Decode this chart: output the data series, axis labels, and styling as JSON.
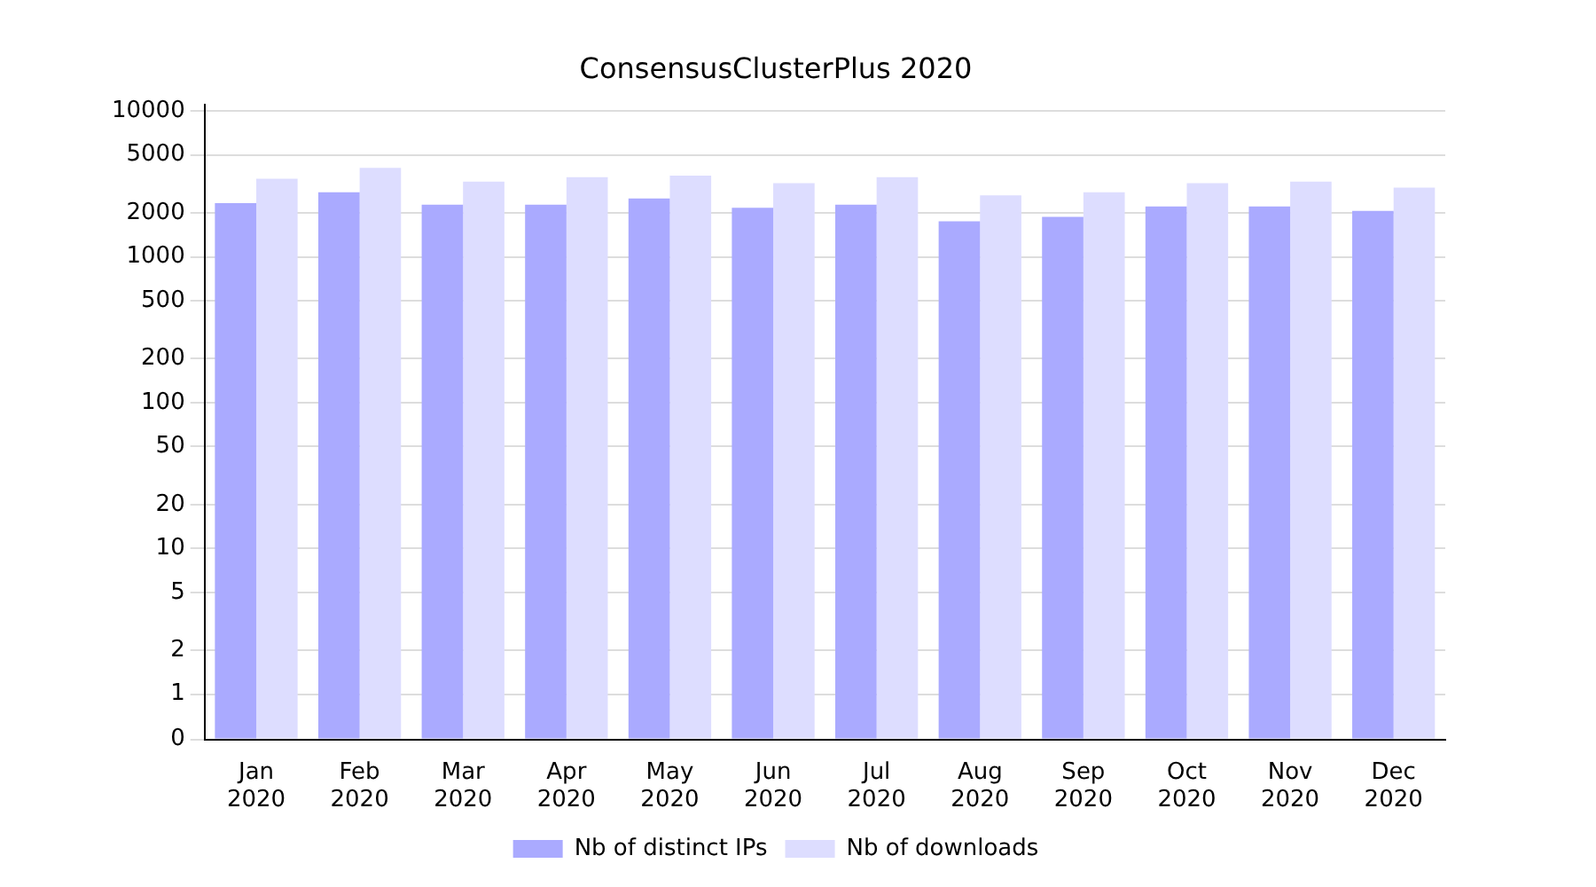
{
  "chart_data": {
    "type": "bar",
    "title": "ConsensusClusterPlus 2020",
    "categories": [
      "Jan\n2020",
      "Feb\n2020",
      "Mar\n2020",
      "Apr\n2020",
      "May\n2020",
      "Jun\n2020",
      "Jul\n2020",
      "Aug\n2020",
      "Sep\n2020",
      "Oct\n2020",
      "Nov\n2020",
      "Dec\n2020"
    ],
    "series": [
      {
        "name": "Nb of distinct IPs",
        "color": "#aaaaff",
        "values": [
          2340,
          2770,
          2280,
          2280,
          2510,
          2170,
          2280,
          1750,
          1880,
          2220,
          2220,
          2070
        ]
      },
      {
        "name": "Nb of downloads",
        "color": "#ddddff",
        "values": [
          3440,
          4080,
          3280,
          3520,
          3610,
          3200,
          3520,
          2640,
          2770,
          3200,
          3280,
          2980
        ]
      }
    ],
    "log": "y",
    "ylim": [
      0,
      11000
    ],
    "yticks": [
      0,
      1,
      2,
      5,
      10,
      20,
      50,
      100,
      200,
      500,
      1000,
      2000,
      5000,
      10000
    ],
    "grid": "y",
    "legend": "bottom"
  }
}
